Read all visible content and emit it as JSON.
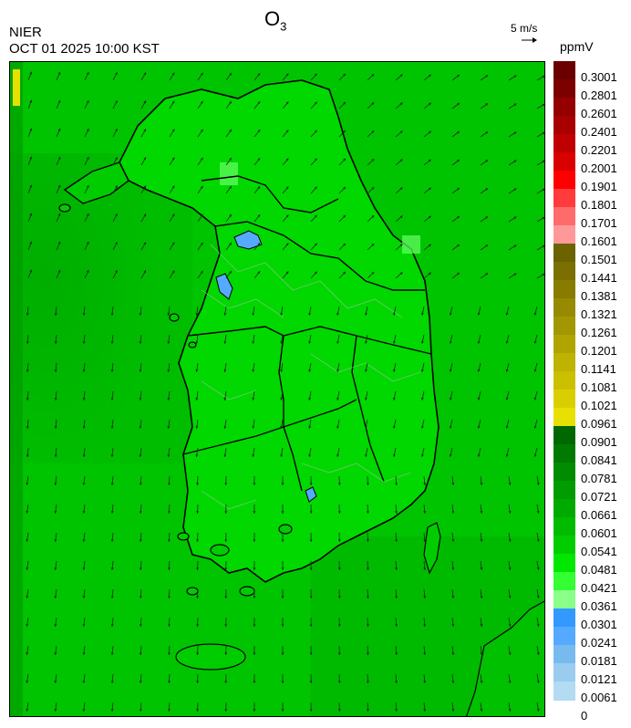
{
  "header": {
    "title_main": "O",
    "title_sub": "3",
    "agency": "NIER",
    "datetime": "OCT 01 2025 10:00 KST",
    "wind_reference": "5 m/s",
    "unit": "ppmV"
  },
  "legend": {
    "labels": [
      "0.3001",
      "0.2801",
      "0.2601",
      "0.2401",
      "0.2201",
      "0.2001",
      "0.1901",
      "0.1801",
      "0.1701",
      "0.1601",
      "0.1501",
      "0.1441",
      "0.1381",
      "0.1321",
      "0.1261",
      "0.1201",
      "0.1141",
      "0.1081",
      "0.1021",
      "0.0961",
      "0.0901",
      "0.0841",
      "0.0781",
      "0.0721",
      "0.0661",
      "0.0601",
      "0.0541",
      "0.0481",
      "0.0421",
      "0.0361",
      "0.0301",
      "0.0241",
      "0.0181",
      "0.0121",
      "0.0061",
      "0"
    ],
    "colors": [
      "#6b0000",
      "#7d0000",
      "#940000",
      "#a80000",
      "#c00000",
      "#d80000",
      "#ff0000",
      "#ff3b3b",
      "#ff6b6b",
      "#ff9999",
      "#6b6200",
      "#7a6f00",
      "#877c00",
      "#958a00",
      "#a29700",
      "#b0a500",
      "#bdb300",
      "#cbc000",
      "#d9cf00",
      "#e8e000",
      "#006800",
      "#007a00",
      "#008c00",
      "#009c00",
      "#00aa00",
      "#00bb00",
      "#00cc00",
      "#00e800",
      "#33ff33",
      "#8aff8a",
      "#3399ff",
      "#55aaff",
      "#77bbee",
      "#99ccee",
      "#b3dbf2"
    ]
  }
}
